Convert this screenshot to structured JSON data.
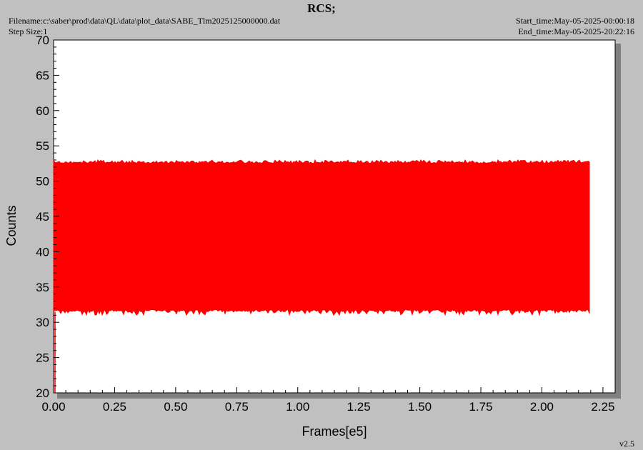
{
  "header": {
    "title": "RCS;",
    "filename": "Filename:c:\\saber\\prod\\data\\QL\\data\\plot_data\\SABE_Tlm2025125000000.dat",
    "step_size": "Step Size:1",
    "start_time": "Start_time:May-05-2025-00:00:18",
    "end_time": "End_time:May-05-2025-20:22:16"
  },
  "footer": {
    "version": "v2.5"
  },
  "colors": {
    "series": "#ff0000",
    "plot_background": "#ffffff",
    "page_background": "#c0c0c0",
    "shadow": "#808080"
  },
  "chart_data": {
    "type": "line",
    "title": "RCS;",
    "xlabel": "Frames[e5]",
    "ylabel": "Counts",
    "xlim": [
      0,
      2.3
    ],
    "ylim": [
      20,
      70
    ],
    "xticks": [
      "0.00",
      "0.25",
      "0.50",
      "0.75",
      "1.00",
      "1.25",
      "1.50",
      "1.75",
      "2.00",
      "2.25"
    ],
    "yticks": [
      "20",
      "25",
      "30",
      "35",
      "40",
      "45",
      "50",
      "55",
      "60",
      "65",
      "70"
    ],
    "grid": false,
    "series": [
      {
        "x_start": 0.0,
        "x_end": 2.2,
        "y_min": 31,
        "y_max": 53,
        "y_typical_low": 31.5,
        "y_typical_high": 52.8
      }
    ]
  }
}
